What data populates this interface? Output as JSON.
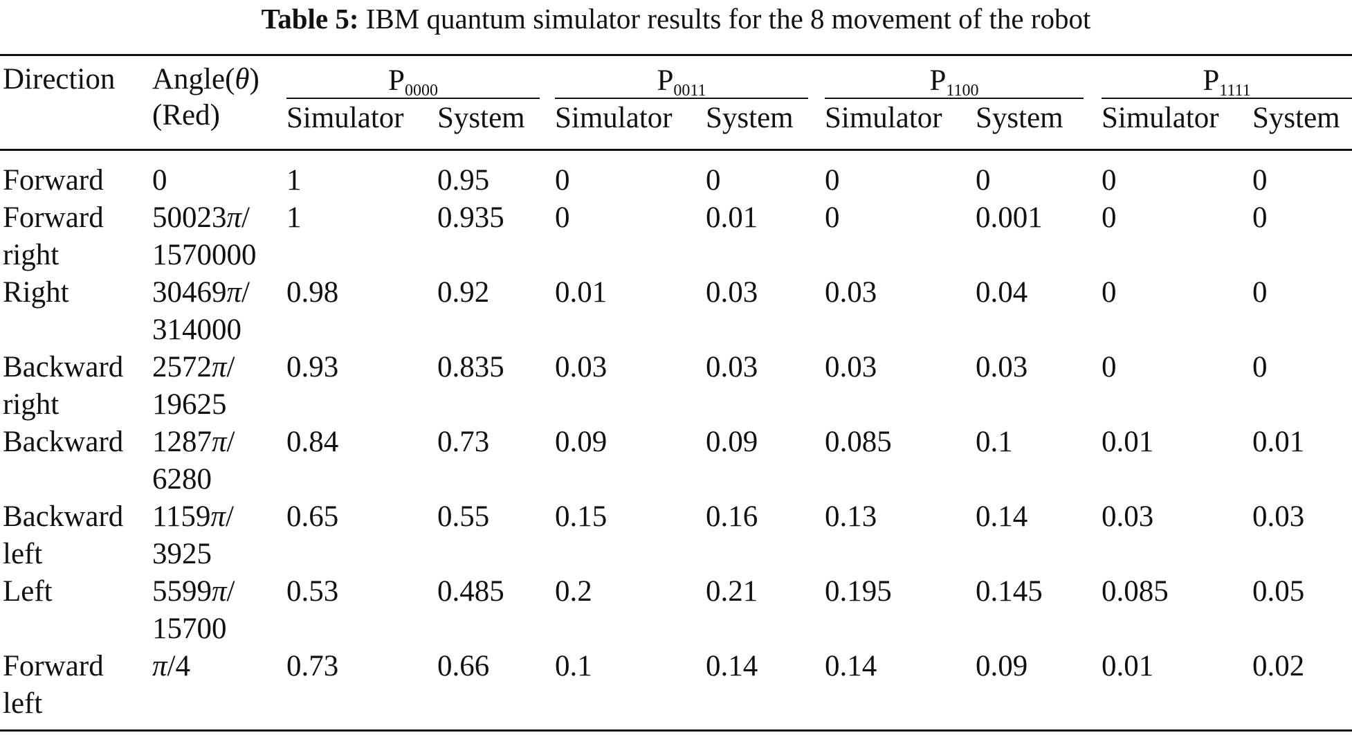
{
  "caption": {
    "label": "Table 5:",
    "text": "IBM quantum simulator results for the 8 movement of the robot"
  },
  "header": {
    "direction": "Direction",
    "angle_line1_prefix": "Angle(",
    "angle_theta": "θ",
    "angle_line1_suffix": ")",
    "angle_line2": "(Red)",
    "groups": [
      {
        "p": "P",
        "sub": "0000"
      },
      {
        "p": "P",
        "sub": "0011"
      },
      {
        "p": "P",
        "sub": "1100"
      },
      {
        "p": "P",
        "sub": "1111"
      }
    ],
    "simulator": "Simulator",
    "system": "System"
  },
  "pi_symbol": "π",
  "rows": [
    {
      "dir1": "Forward",
      "dir2": "",
      "ang_num": "0",
      "ang_pi": false,
      "ang_den": "",
      "vals": [
        "1",
        "0.95",
        "0",
        "0",
        "0",
        "0",
        "0",
        "0"
      ]
    },
    {
      "dir1": "Forward",
      "dir2": "right",
      "ang_num": "50023",
      "ang_pi": true,
      "ang_den": "1570000",
      "vals": [
        "1",
        "0.935",
        "0",
        "0.01",
        "0",
        "0.001",
        "0",
        "0"
      ]
    },
    {
      "dir1": "Right",
      "dir2": "",
      "ang_num": "30469",
      "ang_pi": true,
      "ang_den": "314000",
      "vals": [
        "0.98",
        "0.92",
        "0.01",
        "0.03",
        "0.03",
        "0.04",
        "0",
        "0"
      ]
    },
    {
      "dir1": "Backward",
      "dir2": "right",
      "ang_num": "2572",
      "ang_pi": true,
      "ang_den": "19625",
      "vals": [
        "0.93",
        "0.835",
        "0.03",
        "0.03",
        "0.03",
        "0.03",
        "0",
        "0"
      ]
    },
    {
      "dir1": "Backward",
      "dir2": "",
      "ang_num": "1287",
      "ang_pi": true,
      "ang_den": "6280",
      "vals": [
        "0.84",
        "0.73",
        "0.09",
        "0.09",
        "0.085",
        "0.1",
        "0.01",
        "0.01"
      ]
    },
    {
      "dir1": "Backward",
      "dir2": "left",
      "ang_num": "1159",
      "ang_pi": true,
      "ang_den": "3925",
      "vals": [
        "0.65",
        "0.55",
        "0.15",
        "0.16",
        "0.13",
        "0.14",
        "0.03",
        "0.03"
      ]
    },
    {
      "dir1": "Left",
      "dir2": "",
      "ang_num": "5599",
      "ang_pi": true,
      "ang_den": "15700",
      "vals": [
        "0.53",
        "0.485",
        "0.2",
        "0.21",
        "0.195",
        "0.145",
        "0.085",
        "0.05"
      ]
    },
    {
      "dir1": "Forward",
      "dir2": "left",
      "ang_num": "",
      "ang_pi": true,
      "ang_den": "4",
      "vals": [
        "0.73",
        "0.66",
        "0.1",
        "0.14",
        "0.14",
        "0.09",
        "0.01",
        "0.02"
      ],
      "ang_inline": true
    }
  ]
}
